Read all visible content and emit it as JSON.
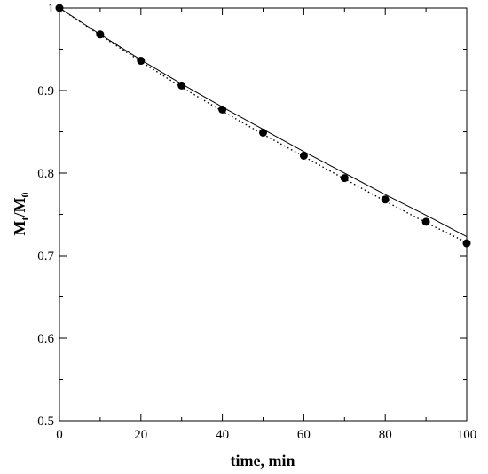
{
  "chart_data": {
    "type": "scatter",
    "title": "",
    "xlabel": "time, min",
    "ylabel": {
      "main": "M",
      "sub1": "t",
      "sep": "/M",
      "sub2": "0"
    },
    "xlim": [
      0,
      100
    ],
    "ylim": [
      0.5,
      1.0
    ],
    "x_major_ticks": [
      0,
      20,
      40,
      60,
      80,
      100
    ],
    "x_minor_step": 10,
    "y_major_ticks": [
      0.5,
      0.6,
      0.7,
      0.8,
      0.9,
      1.0
    ],
    "y_tick_labels": [
      "0.5",
      "0.6",
      "0.7",
      "0.8",
      "0.9",
      "1"
    ],
    "y_minor_step": 0.05,
    "grid": false,
    "series": [
      {
        "style": "markers",
        "x": [
          0,
          10,
          20,
          30,
          40,
          50,
          60,
          70,
          80,
          90,
          100
        ],
        "y": [
          1.0,
          0.968,
          0.936,
          0.906,
          0.877,
          0.849,
          0.821,
          0.794,
          0.768,
          0.741,
          0.715
        ]
      },
      {
        "style": "solid-line",
        "x": [
          0,
          10,
          20,
          30,
          40,
          50,
          60,
          70,
          80,
          90,
          100
        ],
        "y": [
          1.0,
          0.968,
          0.937,
          0.908,
          0.88,
          0.853,
          0.826,
          0.8,
          0.774,
          0.749,
          0.723
        ]
      },
      {
        "style": "dotted-line",
        "x": [
          0,
          10,
          20,
          30,
          40,
          50,
          60,
          70,
          80,
          90,
          100
        ],
        "y": [
          1.0,
          0.967,
          0.935,
          0.904,
          0.875,
          0.847,
          0.82,
          0.793,
          0.766,
          0.74,
          0.716
        ]
      }
    ]
  }
}
